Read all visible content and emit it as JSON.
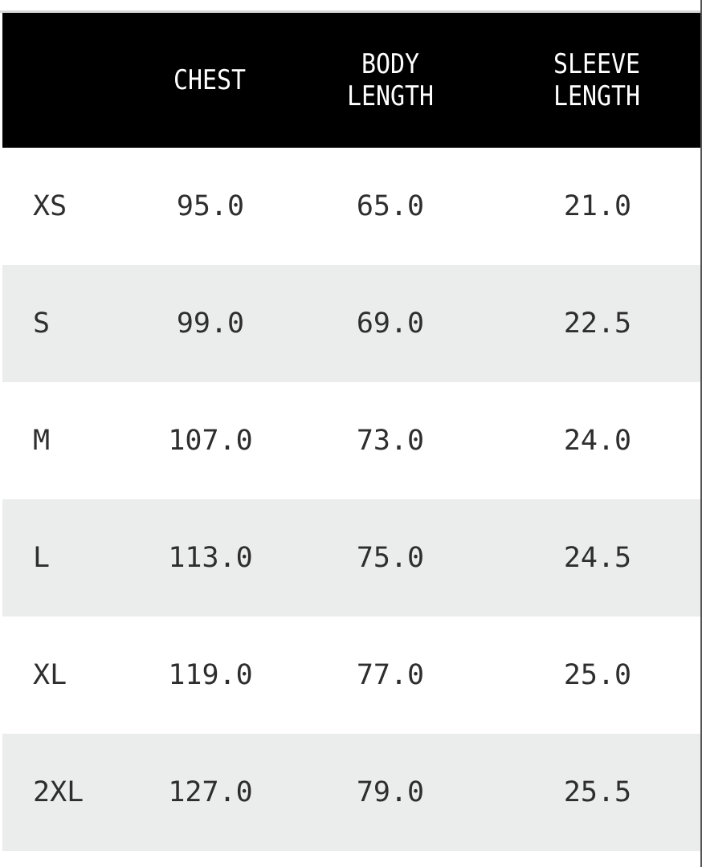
{
  "headers": [
    "",
    "CHEST",
    "BODY\nLENGTH",
    "SLEEVE\nLENGTH"
  ],
  "rows": [
    [
      "XS",
      "95.0",
      "65.0",
      "21.0"
    ],
    [
      "S",
      "99.0",
      "69.0",
      "22.5"
    ],
    [
      "M",
      "107.0",
      "73.0",
      "24.0"
    ],
    [
      "L",
      "113.0",
      "75.0",
      "24.5"
    ],
    [
      "XL",
      "119.0",
      "77.0",
      "25.0"
    ],
    [
      "2XL",
      "127.0",
      "79.0",
      "25.5"
    ]
  ],
  "colors": {
    "header_bg": "#000000",
    "alt_row_bg": "#ebecec",
    "text": "#2e2e2e"
  }
}
